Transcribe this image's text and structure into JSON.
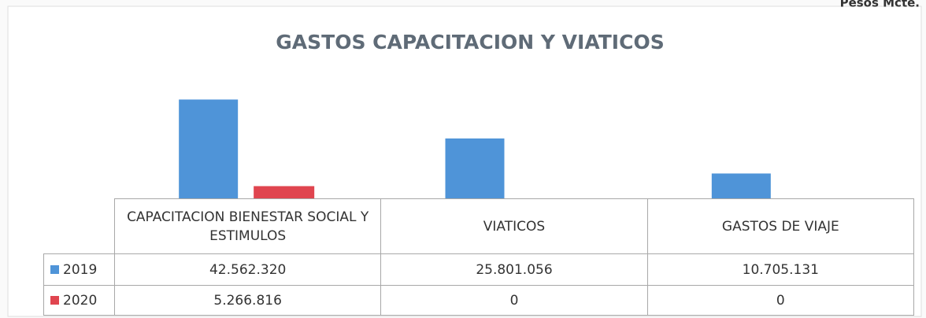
{
  "chart_data": {
    "type": "bar",
    "title": "GASTOS CAPACITACION Y VIATICOS",
    "unit_note": "Pesos Mcte.",
    "categories": [
      "CAPACITACION BIENESTAR SOCIAL Y ESTIMULOS",
      "VIATICOS",
      "GASTOS DE VIAJE"
    ],
    "series": [
      {
        "name": "2019",
        "color": "#4f94d8",
        "values": [
          42562320,
          25801056,
          10705131
        ],
        "value_labels": [
          "42.562.320",
          "25.801.056",
          "10.705.131"
        ]
      },
      {
        "name": "2020",
        "color": "#e0454f",
        "values": [
          5266816,
          0,
          0
        ],
        "value_labels": [
          "5.266.816",
          "0",
          "0"
        ]
      }
    ],
    "ylim": [
      0,
      50000000
    ]
  }
}
